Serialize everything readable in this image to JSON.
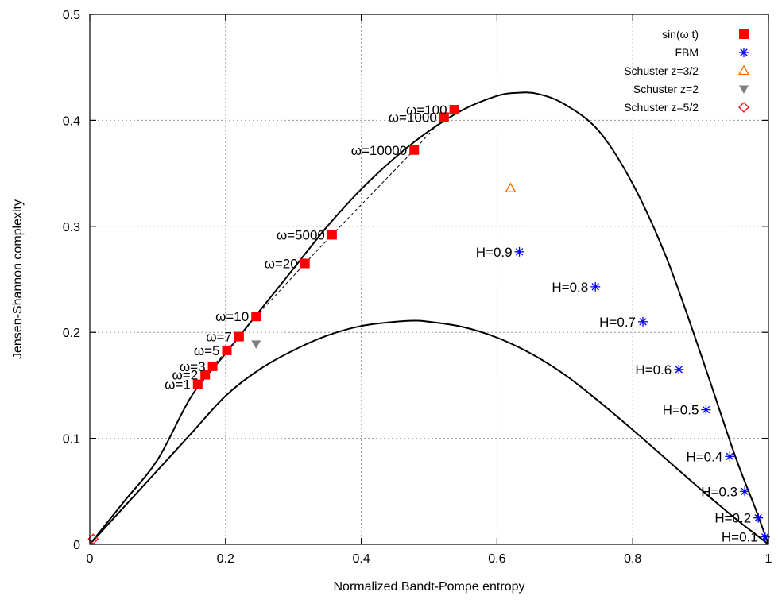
{
  "chart_data": {
    "type": "scatter",
    "title": "",
    "xlabel": "Normalized Bandt-Pompe entropy",
    "ylabel": "Jensen-Shannon complexity",
    "xlim": [
      0,
      1
    ],
    "ylim": [
      0,
      0.5
    ],
    "xticks": [
      0,
      0.2,
      0.4,
      0.6,
      0.8,
      1
    ],
    "xtick_labels": [
      "0",
      "0.2",
      "0.4",
      "0.6",
      "0.8",
      "1"
    ],
    "yticks": [
      0,
      0.1,
      0.2,
      0.3,
      0.4,
      0.5
    ],
    "ytick_labels": [
      "0",
      "0.1",
      "0.2",
      "0.3",
      "0.4",
      "0.5"
    ],
    "grid": true,
    "legend_position": "top-right",
    "series": [
      {
        "name": "sin(ω t)",
        "marker": "filled-square",
        "color": "#ff0000",
        "connect": "dashed",
        "x": [
          0.159,
          0.17,
          0.181,
          0.202,
          0.22,
          0.245,
          0.317,
          0.357,
          0.478,
          0.522,
          0.537
        ],
        "y": [
          0.151,
          0.16,
          0.168,
          0.183,
          0.196,
          0.215,
          0.265,
          0.292,
          0.372,
          0.403,
          0.41
        ],
        "labels": [
          "ω=1",
          "ω=2",
          "ω=3",
          "ω=5",
          "ω=7",
          "ω=10",
          "ω=20",
          "ω=5000",
          "ω=10000",
          "ω=1000",
          "ω=100"
        ]
      },
      {
        "name": "FBM",
        "marker": "asterisk",
        "color": "#0000ff",
        "x": [
          0.995,
          0.985,
          0.965,
          0.943,
          0.908,
          0.868,
          0.815,
          0.745,
          0.633
        ],
        "y": [
          0.007,
          0.025,
          0.05,
          0.083,
          0.127,
          0.165,
          0.21,
          0.243,
          0.276
        ],
        "labels": [
          "H=0.1",
          "H=0.2",
          "H=0.3",
          "H=0.4",
          "H=0.5",
          "H=0.6",
          "H=0.7",
          "H=0.8",
          "H=0.9"
        ]
      },
      {
        "name": "Schuster z=3/2",
        "marker": "open-triangle",
        "color": "#ff6600",
        "x": [
          0.62
        ],
        "y": [
          0.336
        ]
      },
      {
        "name": "Schuster z=2",
        "marker": "filled-triangle-down",
        "color": "#808080",
        "x": [
          0.245
        ],
        "y": [
          0.189
        ]
      },
      {
        "name": "Schuster z=5/2",
        "marker": "open-diamond",
        "color": "#ff0000",
        "x": [
          0.005
        ],
        "y": [
          0.005
        ]
      }
    ],
    "curves": [
      {
        "role": "upper-bound",
        "x": [
          0,
          0.05,
          0.1,
          0.15,
          0.2,
          0.25,
          0.3,
          0.35,
          0.4,
          0.45,
          0.5,
          0.55,
          0.6,
          0.63,
          0.66,
          0.7,
          0.75,
          0.8,
          0.85,
          0.9,
          0.95,
          0.98,
          1.0
        ],
        "y": [
          0,
          0.04,
          0.08,
          0.14,
          0.18,
          0.22,
          0.26,
          0.3,
          0.335,
          0.365,
          0.39,
          0.41,
          0.423,
          0.426,
          0.425,
          0.415,
          0.39,
          0.34,
          0.27,
          0.18,
          0.085,
          0.035,
          0
        ]
      },
      {
        "role": "lower-bound",
        "x": [
          0,
          0.05,
          0.1,
          0.15,
          0.2,
          0.25,
          0.3,
          0.35,
          0.4,
          0.45,
          0.48,
          0.5,
          0.55,
          0.6,
          0.65,
          0.7,
          0.75,
          0.8,
          0.85,
          0.9,
          0.95,
          0.98,
          1.0
        ],
        "y": [
          0,
          0.035,
          0.07,
          0.105,
          0.14,
          0.165,
          0.183,
          0.197,
          0.206,
          0.21,
          0.211,
          0.21,
          0.205,
          0.195,
          0.18,
          0.16,
          0.135,
          0.108,
          0.08,
          0.052,
          0.025,
          0.01,
          0
        ]
      }
    ]
  }
}
